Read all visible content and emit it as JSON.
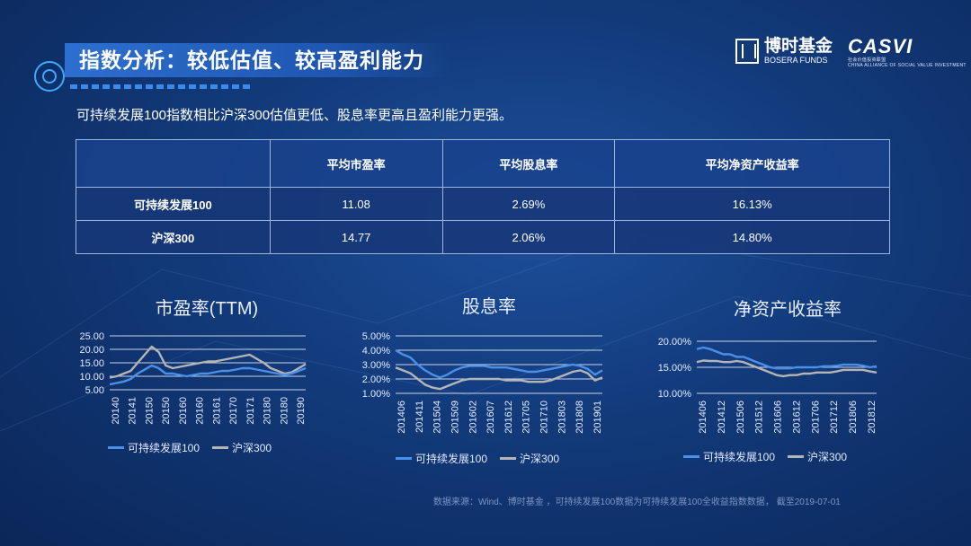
{
  "header": {
    "title": "指数分析：较低估值、较高盈利能力",
    "logo_bosera_cn": "博时基金",
    "logo_bosera_en": "BOSERA FUNDS",
    "logo_casvi": "CASVI",
    "logo_casvi_cn": "社会价值投资联盟",
    "logo_casvi_en": "CHINA ALLIANCE OF SOCIAL VALUE INVESTMENT"
  },
  "subtitle": "可持续发展100指数相比沪深300估值更低、股息率更高且盈利能力更强。",
  "table": {
    "headers": [
      "",
      "平均市盈率",
      "平均股息率",
      "平均净资产收益率"
    ],
    "rows": [
      {
        "name": "可持续发展100",
        "pe": "11.08",
        "dy": "2.69%",
        "roe": "16.13%"
      },
      {
        "name": "沪深300",
        "pe": "14.77",
        "dy": "2.06%",
        "roe": "14.80%"
      }
    ]
  },
  "colors": {
    "series1": "#4a90e8",
    "series2": "#b5b5b5",
    "grid": "#c9d4ea"
  },
  "chart_data": [
    {
      "type": "line",
      "title": "市盈率(TTM)",
      "yticks": [
        "25.00",
        "20.00",
        "15.00",
        "10.00",
        "5.00"
      ],
      "ylim": [
        5,
        25
      ],
      "xticks": [
        "20140",
        "20141",
        "20150",
        "20150",
        "20160",
        "20160",
        "20161",
        "20170",
        "20171",
        "20180",
        "20180",
        "20190"
      ],
      "series": [
        {
          "name": "可持续发展100",
          "values": [
            7,
            7.5,
            8,
            9,
            11,
            12.5,
            14,
            13,
            11,
            11,
            10.5,
            10,
            10.5,
            11,
            11,
            11.5,
            12,
            12,
            12.5,
            13,
            13,
            12.5,
            12,
            11.5,
            11,
            10.5,
            11,
            12,
            13
          ]
        },
        {
          "name": "沪深300",
          "values": [
            9.5,
            10,
            11,
            12,
            15,
            18,
            21,
            19,
            14,
            13,
            13.5,
            14,
            14.5,
            15,
            15.5,
            15.5,
            16,
            16.5,
            17,
            17.5,
            18,
            16.5,
            15,
            13,
            12,
            11,
            11.5,
            13,
            14.5
          ]
        }
      ]
    },
    {
      "type": "line",
      "title": "股息率",
      "yticks": [
        "5.00%",
        "4.00%",
        "3.00%",
        "2.00%",
        "1.00%"
      ],
      "ylim": [
        1,
        5
      ],
      "xticks": [
        "201406",
        "201411",
        "201504",
        "201509",
        "201602",
        "201607",
        "201612",
        "201705",
        "201710",
        "201803",
        "201808",
        "201901"
      ],
      "series": [
        {
          "name": "可持续发展100",
          "values": [
            4,
            3.7,
            3.5,
            3,
            2.6,
            2.3,
            2.1,
            2.3,
            2.6,
            2.8,
            2.9,
            2.9,
            2.9,
            2.8,
            2.8,
            2.8,
            2.7,
            2.6,
            2.5,
            2.5,
            2.6,
            2.7,
            2.8,
            2.9,
            3,
            2.9,
            2.7,
            2.3,
            2.6
          ]
        },
        {
          "name": "沪深300",
          "values": [
            2.8,
            2.6,
            2.4,
            2,
            1.6,
            1.4,
            1.3,
            1.5,
            1.7,
            1.9,
            2,
            2,
            2,
            2,
            2,
            1.9,
            1.9,
            1.9,
            1.8,
            1.8,
            1.8,
            1.9,
            2.1,
            2.3,
            2.5,
            2.6,
            2.4,
            1.9,
            2.1
          ]
        }
      ]
    },
    {
      "type": "line",
      "title": "净资产收益率",
      "yticks": [
        "20.00%",
        "15.00%",
        "10.00%"
      ],
      "ylim": [
        10,
        20
      ],
      "xticks": [
        "201406",
        "201412",
        "201506",
        "201512",
        "201606",
        "201612",
        "201706",
        "201712",
        "201806",
        "201812"
      ],
      "series": [
        {
          "name": "可持续发展100",
          "values": [
            18.5,
            18.8,
            18.5,
            18,
            17.5,
            17.5,
            17,
            17,
            16.5,
            16,
            15.5,
            15,
            14.8,
            14.8,
            14.8,
            15,
            15,
            15,
            15,
            15.2,
            15.2,
            15.3,
            15.5,
            15.5,
            15.5,
            15.3,
            15,
            15.2
          ]
        },
        {
          "name": "沪深300",
          "values": [
            16,
            16.3,
            16.2,
            16.2,
            16,
            16,
            16.2,
            16,
            15.5,
            15,
            14.5,
            14,
            13.5,
            13.3,
            13.5,
            13.5,
            13.8,
            13.8,
            14,
            14,
            14,
            14.2,
            14.5,
            14.5,
            14.5,
            14.5,
            14.2,
            14
          ]
        }
      ]
    }
  ],
  "source": "数据来源：Wind、博时基金 ，可持续发展100数据为可持续发展100全收益指数数据， 截至2019-07-01"
}
